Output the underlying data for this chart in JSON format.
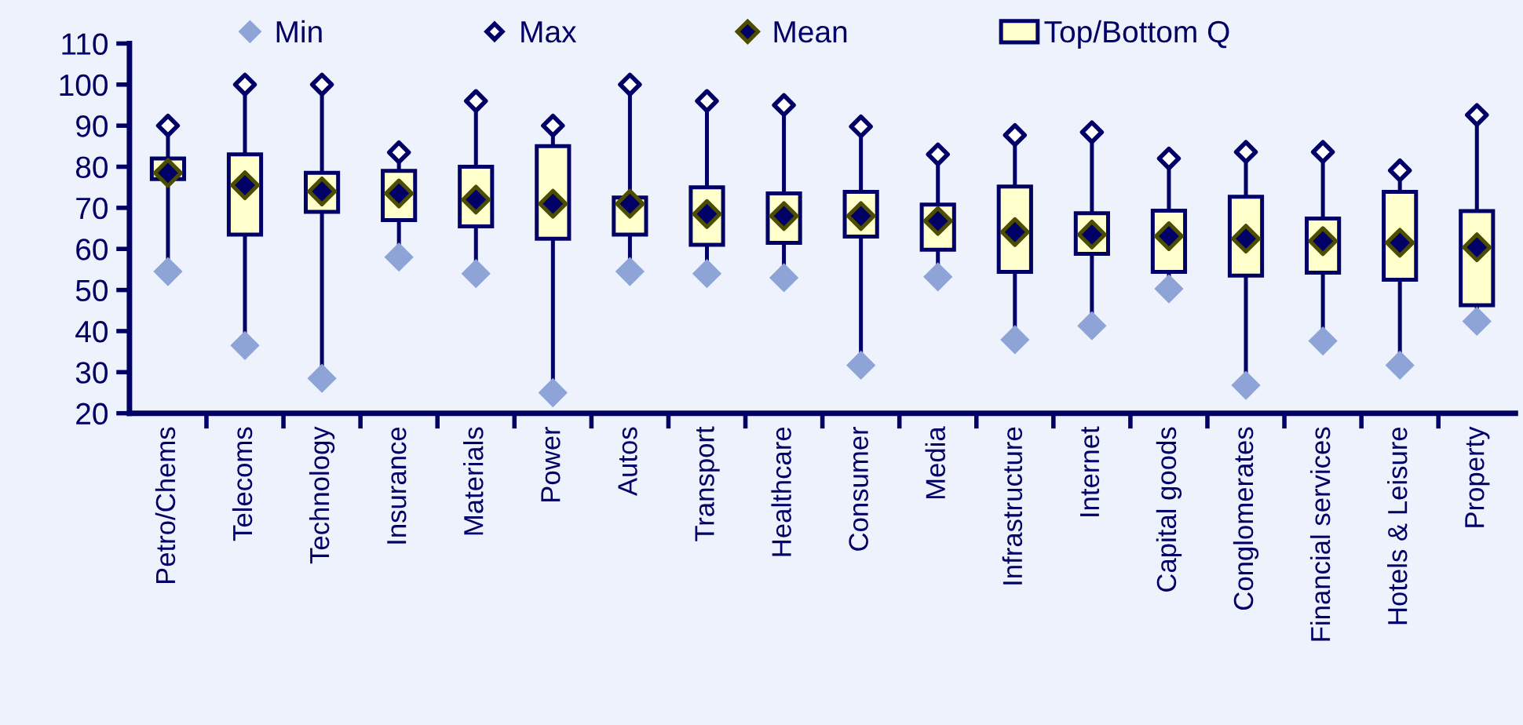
{
  "chart_data": {
    "type": "box",
    "categories": [
      "Petro/Chems",
      "Telecoms",
      "Technology",
      "Insurance",
      "Materials",
      "Power",
      "Autos",
      "Transport",
      "Healthcare",
      "Consumer",
      "Media",
      "Infrastructure",
      "Internet",
      "Capital goods",
      "Conglomerates",
      "Financial services",
      "Hotels & Leisure",
      "Property"
    ],
    "ylim": [
      20,
      110
    ],
    "yticks": [
      20,
      30,
      40,
      50,
      60,
      70,
      80,
      90,
      100,
      110
    ],
    "grid": false,
    "legend": "top",
    "marker": "diamond",
    "series": [
      {
        "name": "Top/Bottom Q",
        "color": "#ffffcc",
        "boxes": [
          {
            "low": 54.5,
            "q1": 77,
            "q3": 82,
            "high": 90
          },
          {
            "low": 36.5,
            "q1": 63.5,
            "q3": 83,
            "high": 100
          },
          {
            "low": 28.5,
            "q1": 69,
            "q3": 78.5,
            "high": 100
          },
          {
            "low": 58,
            "q1": 67,
            "q3": 79,
            "high": 83.5
          },
          {
            "low": 54,
            "q1": 65.5,
            "q3": 80,
            "high": 96
          },
          {
            "low": 25,
            "q1": 62.5,
            "q3": 85,
            "high": 90
          },
          {
            "low": 54.5,
            "q1": 63.5,
            "q3": 72.5,
            "high": 100
          },
          {
            "low": 54,
            "q1": 61,
            "q3": 75,
            "high": 96
          },
          {
            "low": 53,
            "q1": 61.5,
            "q3": 73.5,
            "high": 95
          },
          {
            "low": 31.7,
            "q1": 63,
            "q3": 73.9,
            "high": 89.8
          },
          {
            "low": 53.2,
            "q1": 59.8,
            "q3": 70.8,
            "high": 83
          },
          {
            "low": 37.9,
            "q1": 54.4,
            "q3": 75.2,
            "high": 87.7
          },
          {
            "low": 41.3,
            "q1": 58.8,
            "q3": 68.7,
            "high": 88.4
          },
          {
            "low": 50.3,
            "q1": 54.4,
            "q3": 69.3,
            "high": 82
          },
          {
            "low": 26.8,
            "q1": 53.5,
            "q3": 72.7,
            "high": 83.6
          },
          {
            "low": 37.6,
            "q1": 54.2,
            "q3": 67.4,
            "high": 83.6
          },
          {
            "low": 31.7,
            "q1": 52.5,
            "q3": 73.9,
            "high": 79.1
          },
          {
            "low": 42.4,
            "q1": 46.3,
            "q3": 69.2,
            "high": 92.6
          }
        ]
      },
      {
        "name": "Min",
        "type": "scatter",
        "color": "#8ea3d6",
        "values": [
          54.5,
          36.5,
          28.5,
          58,
          54,
          25,
          54.5,
          54,
          53,
          31.7,
          53.2,
          37.9,
          41.3,
          50.3,
          26.8,
          37.6,
          31.7,
          42.4
        ]
      },
      {
        "name": "Max",
        "type": "scatter",
        "color": "#ffffff",
        "values": [
          90,
          100,
          100,
          83.5,
          96,
          90,
          100,
          96,
          95,
          89.8,
          83,
          87.7,
          88.4,
          82,
          83.6,
          83.6,
          79.1,
          92.6
        ]
      },
      {
        "name": "Mean",
        "type": "scatter",
        "color": "#000066",
        "values": [
          78.5,
          75.5,
          74,
          73.5,
          72,
          71,
          71,
          68.5,
          68,
          68,
          66.8,
          64.1,
          63.5,
          63.1,
          62.5,
          61.9,
          61.5,
          60.4
        ]
      }
    ]
  }
}
